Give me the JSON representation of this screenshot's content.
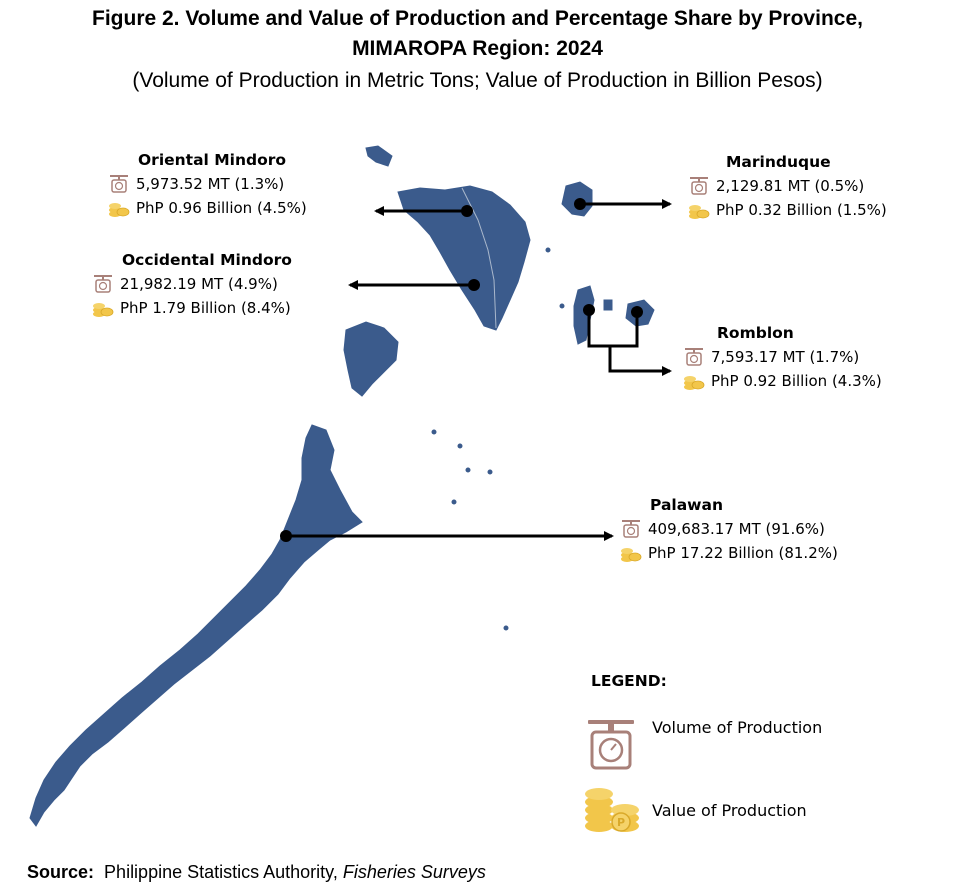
{
  "title": {
    "line1": "Figure 2. Volume and Value of Production and Percentage Share by Province,",
    "line2": "MIMAROPA Region: 2024",
    "line3": "(Volume of Production in Metric Tons; Value of Production in Billion Pesos)"
  },
  "provinces": [
    {
      "name": "Oriental Mindoro",
      "volume": "5,973.52 MT (1.3%)",
      "value": "PhP 0.96 Billion (4.5%)"
    },
    {
      "name": "Occidental Mindoro",
      "volume": "21,982.19 MT (4.9%)",
      "value": "PhP 1.79 Billion (8.4%)"
    },
    {
      "name": "Marinduque",
      "volume": "2,129.81 MT (0.5%)",
      "value": "PhP 0.32 Billion (1.5%)"
    },
    {
      "name": "Romblon",
      "volume": "7,593.17 MT (1.7%)",
      "value": "PhP 0.92 Billion (4.3%)"
    },
    {
      "name": "Palawan",
      "volume": "409,683.17 MT (91.6%)",
      "value": "PhP 17.22 Billion (81.2%)"
    }
  ],
  "legend": {
    "title": "LEGEND:",
    "volume_label": "Volume of Production",
    "value_label": "Value of Production",
    "volume_icon": "scale-icon",
    "value_icon": "coins-icon"
  },
  "source": {
    "label": "Source:",
    "agency": "Philippine Statistics Authority,",
    "survey": "Fisheries Surveys"
  },
  "colors": {
    "land": "#3b5b8c",
    "coin": "#f2c64a",
    "scale": "#a88079"
  }
}
